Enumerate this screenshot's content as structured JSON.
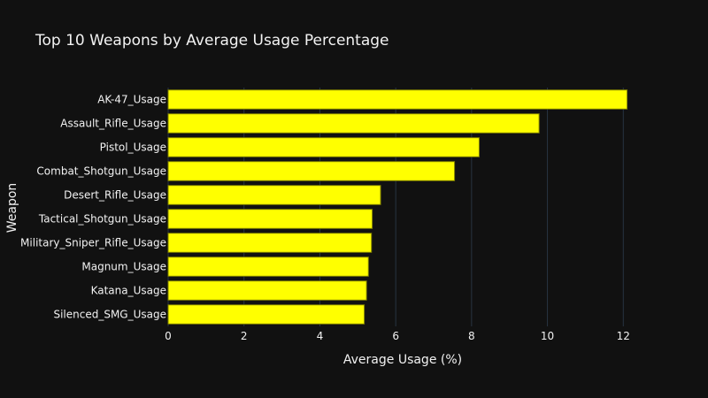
{
  "chart_data": {
    "type": "bar",
    "orientation": "horizontal",
    "title": "Top 10 Weapons by Average Usage Percentage",
    "xlabel": "Average Usage (%)",
    "ylabel": "Weapon",
    "categories": [
      "AK-47_Usage",
      "Assault_Rifle_Usage",
      "Pistol_Usage",
      "Combat_Shotgun_Usage",
      "Desert_Rifle_Usage",
      "Tactical_Shotgun_Usage",
      "Military_Sniper_Rifle_Usage",
      "Magnum_Usage",
      "Katana_Usage",
      "Silenced_SMG_Usage"
    ],
    "values": [
      12.1,
      9.78,
      8.2,
      7.55,
      5.6,
      5.38,
      5.36,
      5.28,
      5.23,
      5.17
    ],
    "xlim": [
      0,
      12.6
    ],
    "xticks": [
      0,
      2,
      4,
      6,
      8,
      10,
      12
    ],
    "grid": true,
    "bar_color": "#ffff00",
    "bar_edge_color": "#808000",
    "background_color": "#111111",
    "text_color": "#f2f2f2",
    "grid_color": "#283442"
  }
}
